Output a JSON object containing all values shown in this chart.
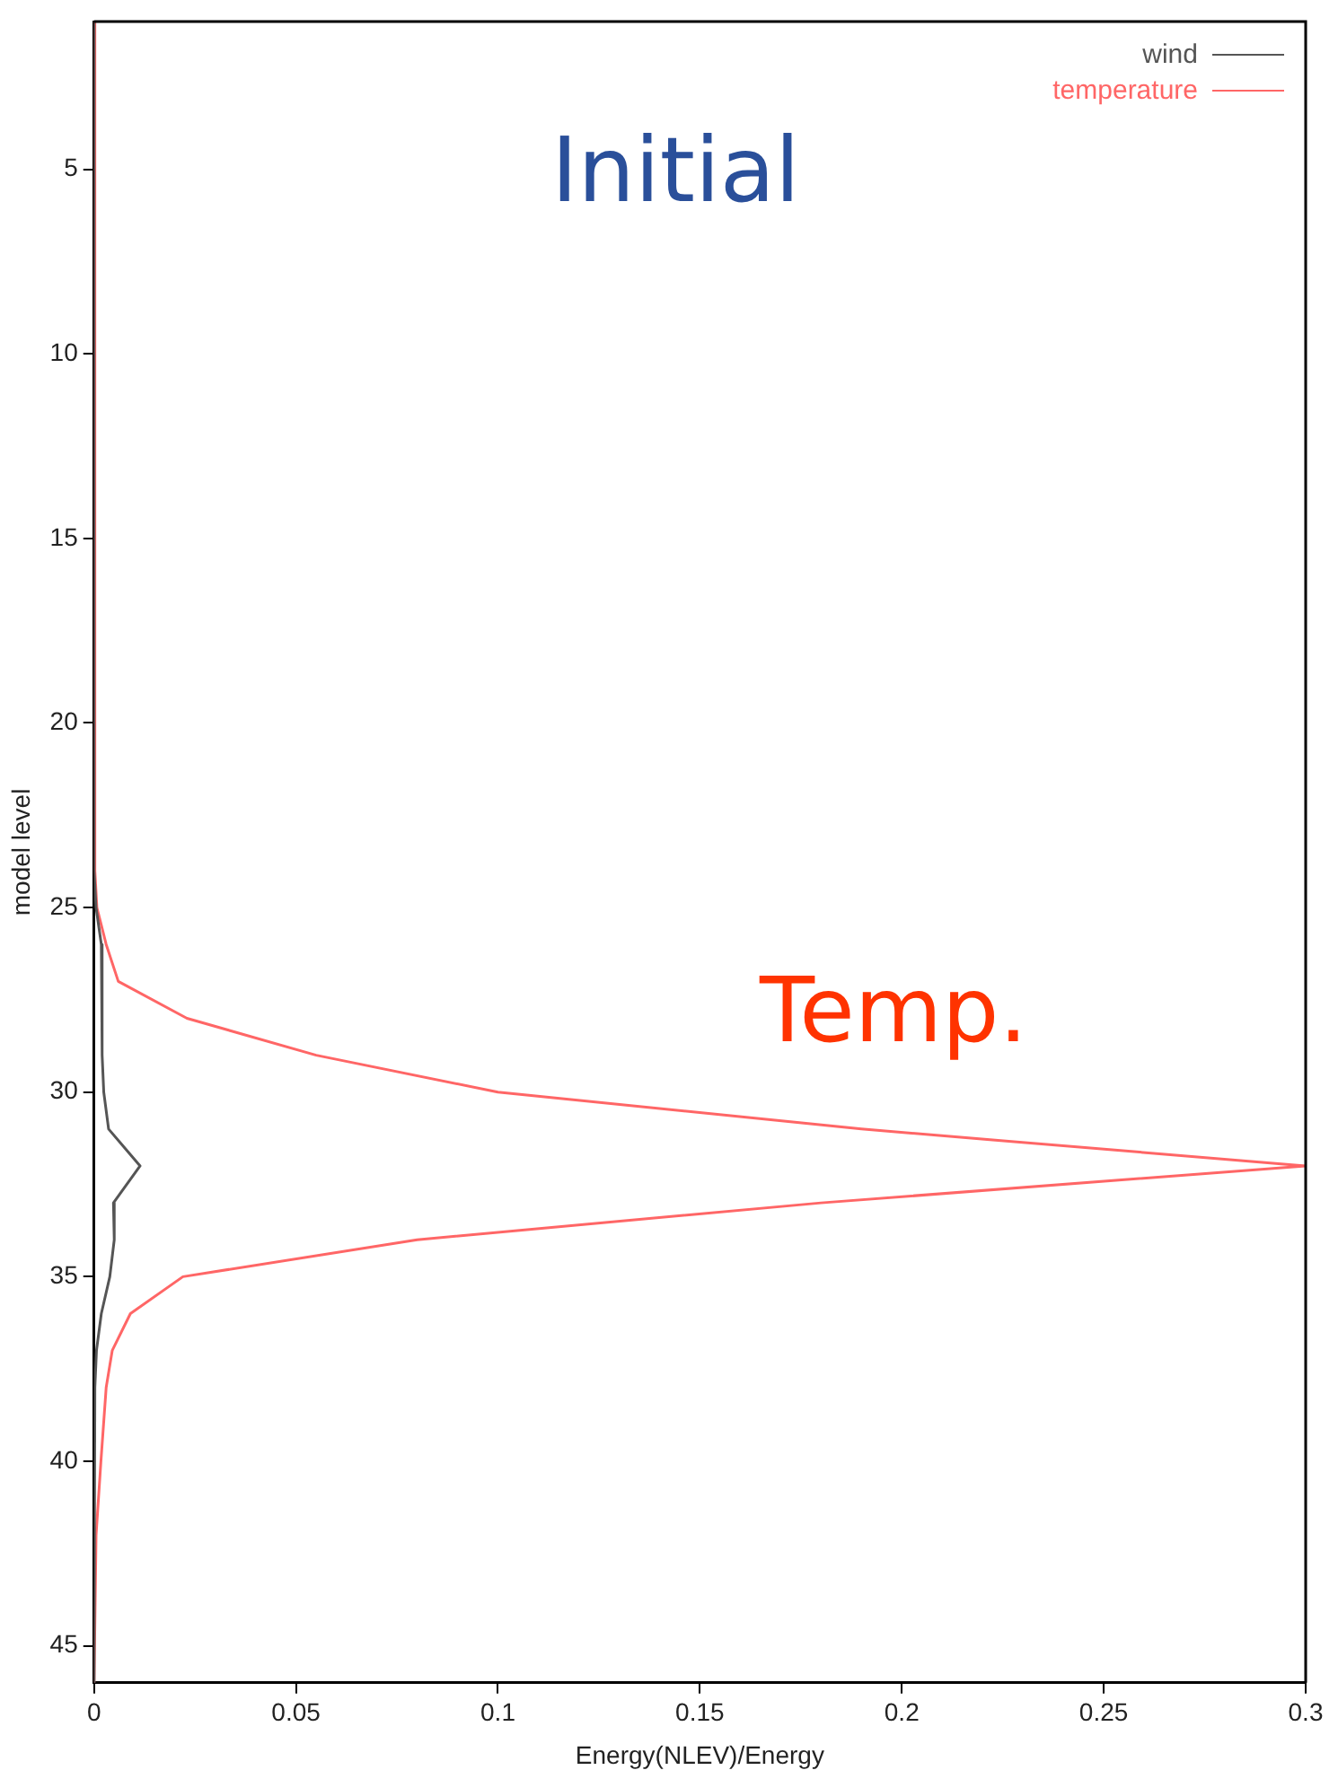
{
  "chart_data": {
    "type": "line",
    "xlabel": "Energy(NLEV)/Energy",
    "ylabel": "model level",
    "xlim": [
      0,
      0.3
    ],
    "xticks": [
      0,
      0.05,
      0.1,
      0.15,
      0.2,
      0.25,
      0.3
    ],
    "ylim": [
      46,
      1
    ],
    "yticks": [
      5,
      10,
      15,
      20,
      25,
      30,
      35,
      40,
      45
    ],
    "grid": false,
    "legend": "top right",
    "marker": "none",
    "line_style": "solid",
    "annotations": [
      "Initial",
      "Temp."
    ],
    "series": [
      {
        "name": "wind",
        "color": "#555555",
        "x": [
          0,
          0,
          0.0005,
          0.0018,
          0.002,
          0.002,
          0.002,
          0.0024,
          0.0036,
          0.0114,
          0.0048,
          0.005,
          0.0039,
          0.0018,
          0.0006,
          0.0002,
          0,
          0
        ],
        "values": [
          1,
          24,
          25,
          26,
          27,
          28,
          29,
          30,
          31,
          32,
          33,
          34,
          35,
          36,
          37,
          38,
          40,
          46
        ]
      },
      {
        "name": "temperature",
        "color": "#ff6666",
        "x": [
          0,
          0.0002,
          0.0007,
          0.003,
          0.006,
          0.023,
          0.055,
          0.1,
          0.19,
          0.3,
          0.18,
          0.08,
          0.022,
          0.009,
          0.0045,
          0.003,
          0.0017,
          0.0005,
          0
        ],
        "values": [
          1,
          24,
          25,
          26,
          27,
          28,
          29,
          30,
          31,
          32,
          33,
          34,
          35,
          36,
          37,
          38,
          40,
          42,
          46
        ]
      }
    ]
  }
}
